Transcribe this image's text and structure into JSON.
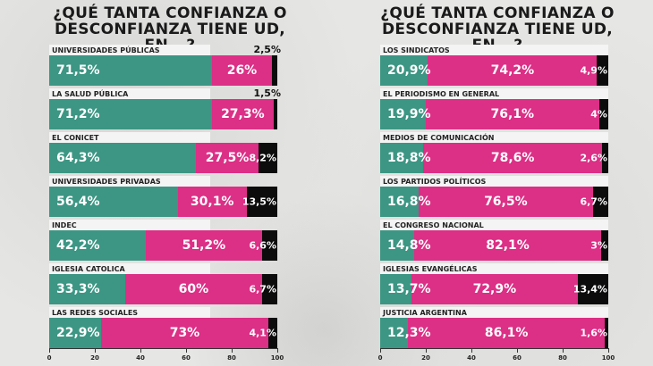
{
  "chart_data": [
    {
      "type": "bar",
      "stacked": true,
      "orientation": "horizontal",
      "title": "¿QUÉ TANTA CONFIANZA O DESCONFIANZA TIENE UD, EN...?",
      "xlim": [
        0,
        100
      ],
      "xticks": [
        "0",
        "20",
        "40",
        "60",
        "80",
        "100"
      ],
      "categories": [
        "UNIVERSIDADES PÚBLICAS",
        "LA SALUD PÚBLICA",
        "EL CONICET",
        "UNIVERSIDADES PRIVADAS",
        "INDEC",
        "IGLESIA CATOLICA",
        "LAS REDES SOCIALES"
      ],
      "series": [
        {
          "values": [
            71.5,
            71.2,
            64.3,
            56.4,
            42.2,
            33.3,
            22.9
          ],
          "labels": [
            "71,5%",
            "71,2%",
            "64,3%",
            "56,4%",
            "42,2%",
            "33,3%",
            "22,9%"
          ],
          "color": "#3c9683"
        },
        {
          "values": [
            26,
            27.3,
            27.5,
            30.1,
            51.2,
            60,
            73
          ],
          "labels": [
            "26%",
            "27,3%",
            "27,5%",
            "30,1%",
            "51,2%",
            "60%",
            "73%"
          ],
          "color": "#dc2f86"
        },
        {
          "values": [
            2.5,
            1.5,
            8.2,
            13.5,
            6.6,
            6.7,
            4.1
          ],
          "labels": [
            "2,5%",
            "1,5%",
            "8,2%",
            "13,5%",
            "6,6%",
            "6,7%",
            "4,1%"
          ],
          "color": "#0c0c0c"
        }
      ]
    },
    {
      "type": "bar",
      "stacked": true,
      "orientation": "horizontal",
      "title": "¿QUÉ TANTA CONFIANZA O DESCONFIANZA TIENE UD, EN...?",
      "xlim": [
        0,
        100
      ],
      "xticks": [
        "0",
        "20",
        "40",
        "60",
        "80",
        "100"
      ],
      "categories": [
        "LOS SINDICATOS",
        "EL PERIODISMO EN GENERAL",
        "MEDIOS  DE COMUNICACIÓN",
        "LOS PARTIDOS POLÍTICOS",
        "EL CONGRESO NACIONAL",
        "IGLESIAS EVANGÉLICAS",
        "JUSTICIA ARGENTINA"
      ],
      "series": [
        {
          "values": [
            20.9,
            19.9,
            18.8,
            16.8,
            14.8,
            13.7,
            12.3
          ],
          "labels": [
            "20,9%",
            "19,9%",
            "18,8%",
            "16,8%",
            "14,8%",
            "13,7%",
            "12,3%"
          ],
          "color": "#3c9683"
        },
        {
          "values": [
            74.2,
            76.1,
            78.6,
            76.5,
            82.1,
            72.9,
            86.1
          ],
          "labels": [
            "74,2%",
            "76,1%",
            "78,6%",
            "76,5%",
            "82,1%",
            "72,9%",
            "86,1%"
          ],
          "color": "#dc2f86"
        },
        {
          "values": [
            4.9,
            4,
            2.6,
            6.7,
            3,
            13.4,
            1.6
          ],
          "labels": [
            "4,9%",
            "4%",
            "2,6%",
            "6,7%",
            "3%",
            "13,4%",
            "1,6%"
          ],
          "color": "#0c0c0c"
        }
      ]
    }
  ],
  "titles": [
    {
      "line1": "¿QUÉ TANTA CONFIANZA O",
      "line2": "DESCONFIANZA TIENE UD, EN...?"
    },
    {
      "line1": "¿QUÉ TANTA CONFIANZA O",
      "line2": "DESCONFIANZA TIENE UD, EN...?"
    }
  ]
}
